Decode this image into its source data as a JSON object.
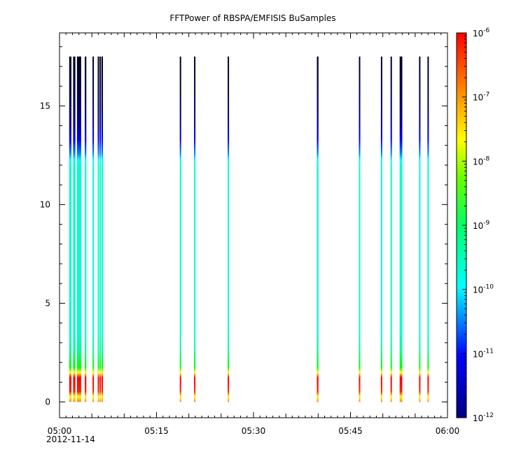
{
  "chart_data": {
    "type": "heatmap",
    "title": "FFTPower of RBSPA/EMFISIS  BuSamples",
    "xlabel": "",
    "ylabel": "",
    "x_date_label": "2012-11-14",
    "x_ticks": [
      "05:00",
      "05:15",
      "05:30",
      "05:45",
      "06:00"
    ],
    "x_range_minutes": [
      0,
      60
    ],
    "y_ticks": [
      "0",
      "5",
      "10",
      "15"
    ],
    "ylim": [
      -0.8,
      18.7
    ],
    "colorbar": {
      "scale": "log",
      "range": [
        1e-12,
        1e-06
      ],
      "ticks": [
        {
          "base": "10",
          "exp": "-12"
        },
        {
          "base": "10",
          "exp": "-11"
        },
        {
          "base": "10",
          "exp": "-10"
        },
        {
          "base": "10",
          "exp": "-9"
        },
        {
          "base": "10",
          "exp": "-8"
        },
        {
          "base": "10",
          "exp": "-7"
        },
        {
          "base": "10",
          "exp": "-6"
        }
      ]
    },
    "ymax_data": 17.5,
    "spectra": [
      {
        "t": 1.5,
        "w": 0.35
      },
      {
        "t": 2.1,
        "w": 0.35
      },
      {
        "t": 2.7,
        "w": 0.45
      },
      {
        "t": 3.1,
        "w": 0.25
      },
      {
        "t": 3.9,
        "w": 0.25
      },
      {
        "t": 5.1,
        "w": 0.2
      },
      {
        "t": 5.9,
        "w": 0.2
      },
      {
        "t": 6.2,
        "w": 0.2
      },
      {
        "t": 6.5,
        "w": 0.2
      },
      {
        "t": 18.6,
        "w": 0.2
      },
      {
        "t": 20.8,
        "w": 0.2
      },
      {
        "t": 26.0,
        "w": 0.2
      },
      {
        "t": 39.8,
        "w": 0.25
      },
      {
        "t": 46.3,
        "w": 0.2
      },
      {
        "t": 49.7,
        "w": 0.2
      },
      {
        "t": 51.2,
        "w": 0.2
      },
      {
        "t": 52.6,
        "w": 0.25
      },
      {
        "t": 52.8,
        "w": 0.2
      },
      {
        "t": 55.6,
        "w": 0.2
      },
      {
        "t": 56.9,
        "w": 0.2
      }
    ],
    "colors": {
      "axis": "#000000",
      "background": "#ffffff",
      "colormap": [
        "#00007f",
        "#0000ff",
        "#00ffff",
        "#00ff00",
        "#ffff00",
        "#ff7f00",
        "#ff0000"
      ]
    }
  }
}
